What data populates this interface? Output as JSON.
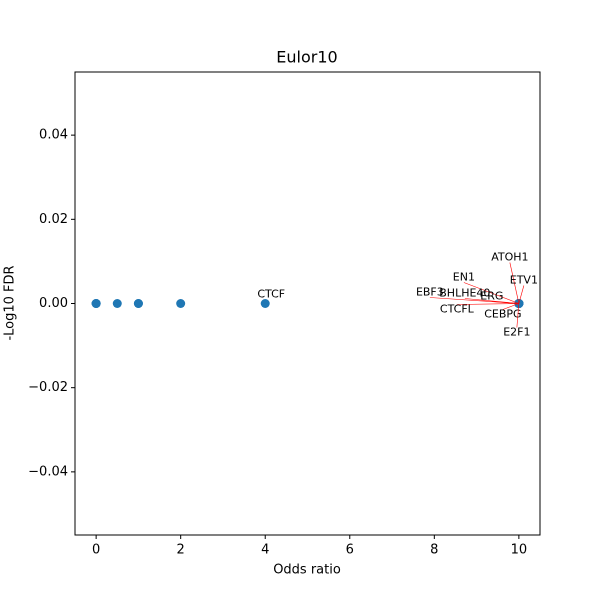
{
  "chart_data": {
    "type": "scatter",
    "title": "Eulor10",
    "xlabel": "Odds ratio",
    "ylabel": "-Log10 FDR",
    "series": [
      {
        "color": "#1f77b4",
        "x": [
          0,
          0,
          0,
          0.5,
          1,
          1,
          2,
          4,
          10,
          10,
          10,
          10,
          10,
          10,
          10,
          10,
          10
        ],
        "values": [
          0,
          0,
          0,
          0,
          0,
          0,
          0,
          0,
          0,
          0,
          0,
          0,
          0,
          0,
          0,
          0,
          0
        ]
      }
    ],
    "annotations": [
      {
        "text": "CTCF",
        "x": 4,
        "y": 0
      },
      {
        "text": "ATOH1",
        "x": 10,
        "y": 0
      },
      {
        "text": "ETV1",
        "x": 10,
        "y": 0
      },
      {
        "text": "EN1",
        "x": 10,
        "y": 0
      },
      {
        "text": "EBF3",
        "x": 10,
        "y": 0
      },
      {
        "text": "BHLHE40",
        "x": 10,
        "y": 0
      },
      {
        "text": "ERG",
        "x": 10,
        "y": 0
      },
      {
        "text": "CTCFL",
        "x": 10,
        "y": 0
      },
      {
        "text": "CEBPG",
        "x": 10,
        "y": 0
      },
      {
        "text": "E2F1",
        "x": 10,
        "y": 0
      }
    ],
    "annotation_line_color": "#ff0000",
    "xlim": [
      -0.5,
      10.5
    ],
    "xticks": [
      0,
      2,
      4,
      6,
      8,
      10
    ],
    "ylim": [
      -0.055,
      0.055
    ],
    "yticks": [
      {
        "value": -0.04,
        "label": "−0.04"
      },
      {
        "value": -0.02,
        "label": "−0.02"
      },
      {
        "value": 0,
        "label": "0.00"
      },
      {
        "value": 0.02,
        "label": "0.02"
      },
      {
        "value": 0.04,
        "label": "0.04"
      }
    ]
  }
}
